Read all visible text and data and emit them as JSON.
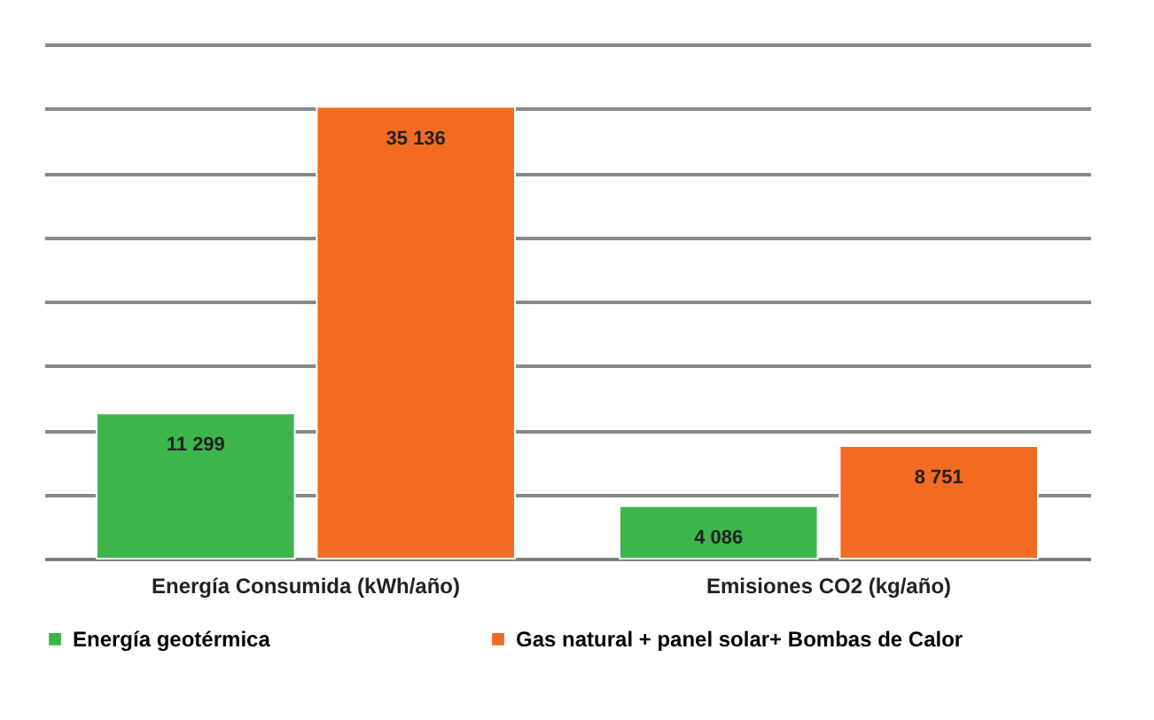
{
  "chart_data": {
    "type": "bar",
    "categories": [
      "Energía Consumida (kWh/año)",
      "Emisiones CO2 (kg/año)"
    ],
    "series": [
      {
        "name": "Energía geotérmica",
        "color": "#3cb54a",
        "values": [
          11299,
          4086
        ],
        "value_labels": [
          "11 299",
          "4 086"
        ]
      },
      {
        "name": "Gas natural + panel solar+ Bombas de Calor",
        "color": "#f26b21",
        "values": [
          35136,
          8751
        ],
        "value_labels": [
          "35 136",
          "8 751"
        ]
      }
    ],
    "ylim": [
      0,
      40000
    ],
    "yticks": [
      {
        "value": 0,
        "label": null
      },
      {
        "value": 5000,
        "label": null
      },
      {
        "value": 10000,
        "label": null
      },
      {
        "value": 15000,
        "label": null
      },
      {
        "value": 20000,
        "label": null
      },
      {
        "value": 25000,
        "label": null
      },
      {
        "value": 30000,
        "label": null
      },
      {
        "value": 35000,
        "label": null
      },
      {
        "value": 40000,
        "label": null
      }
    ],
    "grid": "y",
    "legend": "bottom",
    "tick_labels": "x"
  }
}
